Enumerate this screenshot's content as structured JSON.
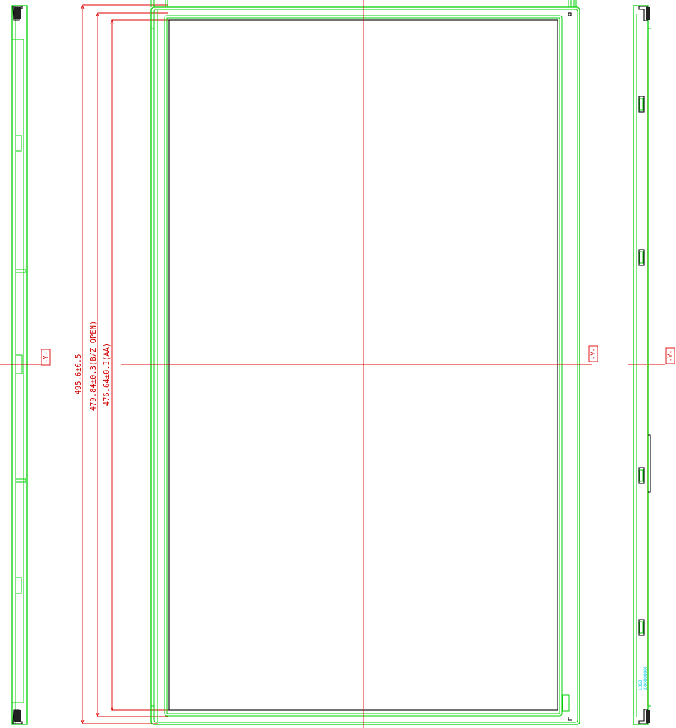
{
  "dimensions": {
    "overall": "495.6±0.5",
    "opening": "479.84±0.3(B/Z OPEN)",
    "active_area": "476.64±0.3(AA)"
  },
  "datum_labels": {
    "left": "-Y-",
    "center": "-Y-",
    "right": "-Y-"
  },
  "side_label": {
    "line1": "LOGO",
    "line2": "XXXXXXXXX"
  },
  "colors": {
    "outline": "#00d000",
    "centerline": "#e00000",
    "panel": "#000000",
    "annotation": "#00c8e8",
    "tape": "#d8c070"
  }
}
